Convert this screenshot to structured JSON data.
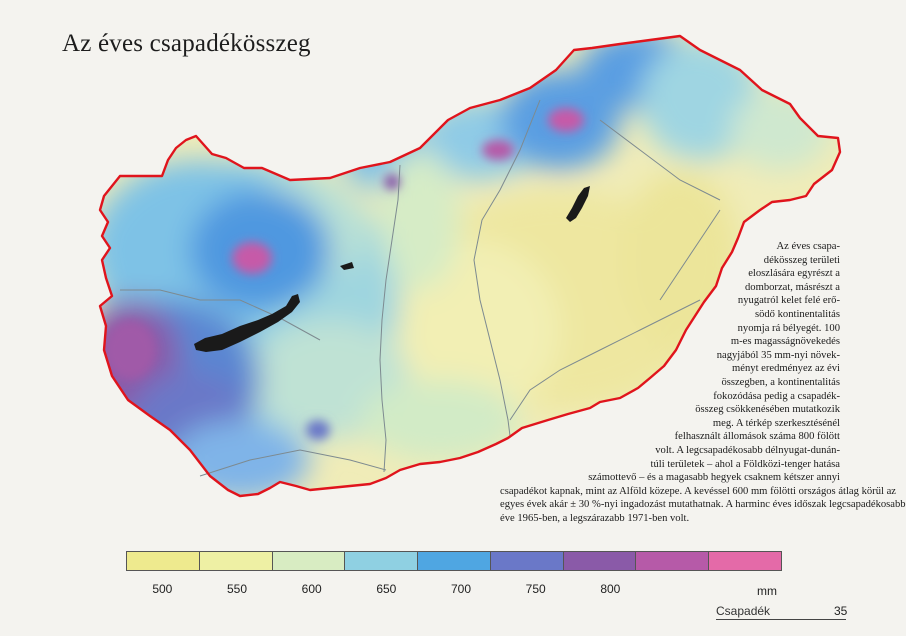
{
  "title": "Az éves csapadékösszeg",
  "body_lines": [
    "Az éves csapa-",
    "dékösszeg területi",
    "eloszlására egyrészt a",
    "domborzat, másrészt a",
    "nyugatról kelet felé erő-",
    "södő kontinentalitás",
    "nyomja rá bélyegét. 100",
    "m-es magasságnövekedés",
    "nagyjából 35 mm-nyi növek-",
    "ményt eredményez az évi",
    "összegben, a kontinentalitás",
    "fokozódása pedig a csapadék-",
    "összeg csökkenésében mutatkozik",
    "meg. A térkép szerkesztésénél",
    "felhasznált állomások száma 800 fölött",
    "volt. A legcsapadékosabb délnyugat-dunán-",
    "túli területek – ahol a Földközi-tenger hatása",
    "számottevő – és a magasabb hegyek csaknem kétszer annyi",
    "csapadékot kapnak, mint az Alföld közepe. A kevéssel 600 mm fölötti országos átlag körül az",
    "egyes évek akár ± 30 %-nyi ingadozást mutathatnak. A harminc éves időszak legcsapadékosabb",
    "éve 1965-ben, a legszárazabb 1971-ben volt."
  ],
  "legend": {
    "labels": [
      "500",
      "550",
      "600",
      "650",
      "700",
      "750",
      "800"
    ],
    "unit": "mm",
    "colors": [
      "#eeea8e",
      "#eef0a4",
      "#d8ecc2",
      "#8fd0e2",
      "#4fa6e2",
      "#6a78c8",
      "#8a5aa8",
      "#b65aa8",
      "#e46aa8"
    ]
  },
  "map": {
    "border_color": "#e0141c",
    "lake_color": "#1a1a1a",
    "river_color": "#7d8a90"
  },
  "footer": {
    "section": "Csapadék",
    "page": "35"
  }
}
